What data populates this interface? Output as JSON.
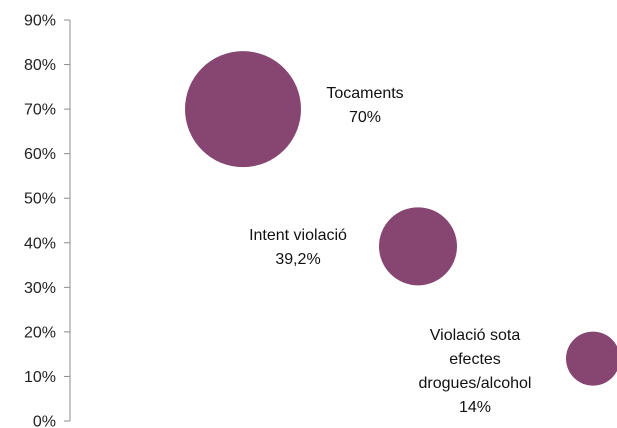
{
  "chart_data": {
    "type": "bubble",
    "title": "",
    "xlabel": "",
    "ylabel": "",
    "ylim": [
      0,
      90
    ],
    "y_ticks": [
      "0%",
      "10%",
      "20%",
      "30%",
      "40%",
      "50%",
      "60%",
      "70%",
      "80%",
      "90%"
    ],
    "x_axis_visible": false,
    "grid": false,
    "bubble_color": "#874571",
    "points": [
      {
        "label_lines": [
          "Tocaments",
          "70%"
        ],
        "y": 70,
        "size": 70
      },
      {
        "label_lines": [
          "Intent violació",
          "39,2%"
        ],
        "y": 39.2,
        "size": 39.2
      },
      {
        "label_lines": [
          "Violació sota",
          "efectes",
          "drogues/alcohol",
          "14%"
        ],
        "y": 14,
        "size": 14
      }
    ]
  }
}
